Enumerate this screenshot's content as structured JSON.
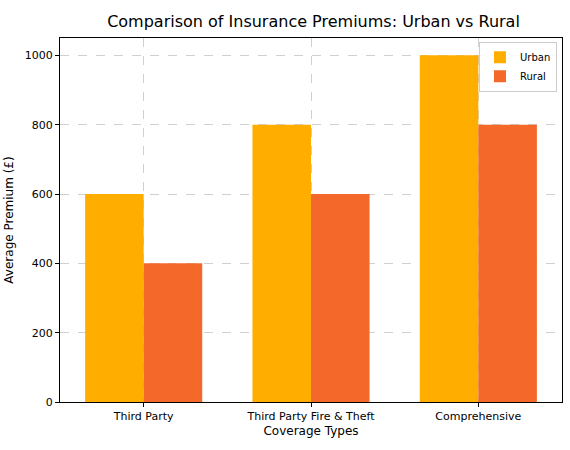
{
  "chart_data": {
    "type": "bar",
    "title": "Comparison of Insurance Premiums: Urban vs Rural",
    "xlabel": "Coverage Types",
    "ylabel": "Average Premium (£)",
    "categories": [
      "Third Party",
      "Third Party Fire & Theft",
      "Comprehensive"
    ],
    "series": [
      {
        "name": "Urban",
        "color": "#ffae00",
        "values": [
          600,
          800,
          1000
        ]
      },
      {
        "name": "Rural",
        "color": "#f4692a",
        "values": [
          400,
          600,
          800
        ]
      }
    ],
    "ylim": [
      0,
      1050
    ],
    "yticks": [
      0,
      200,
      400,
      600,
      800,
      1000
    ],
    "grid": true,
    "legend": "upper right"
  }
}
